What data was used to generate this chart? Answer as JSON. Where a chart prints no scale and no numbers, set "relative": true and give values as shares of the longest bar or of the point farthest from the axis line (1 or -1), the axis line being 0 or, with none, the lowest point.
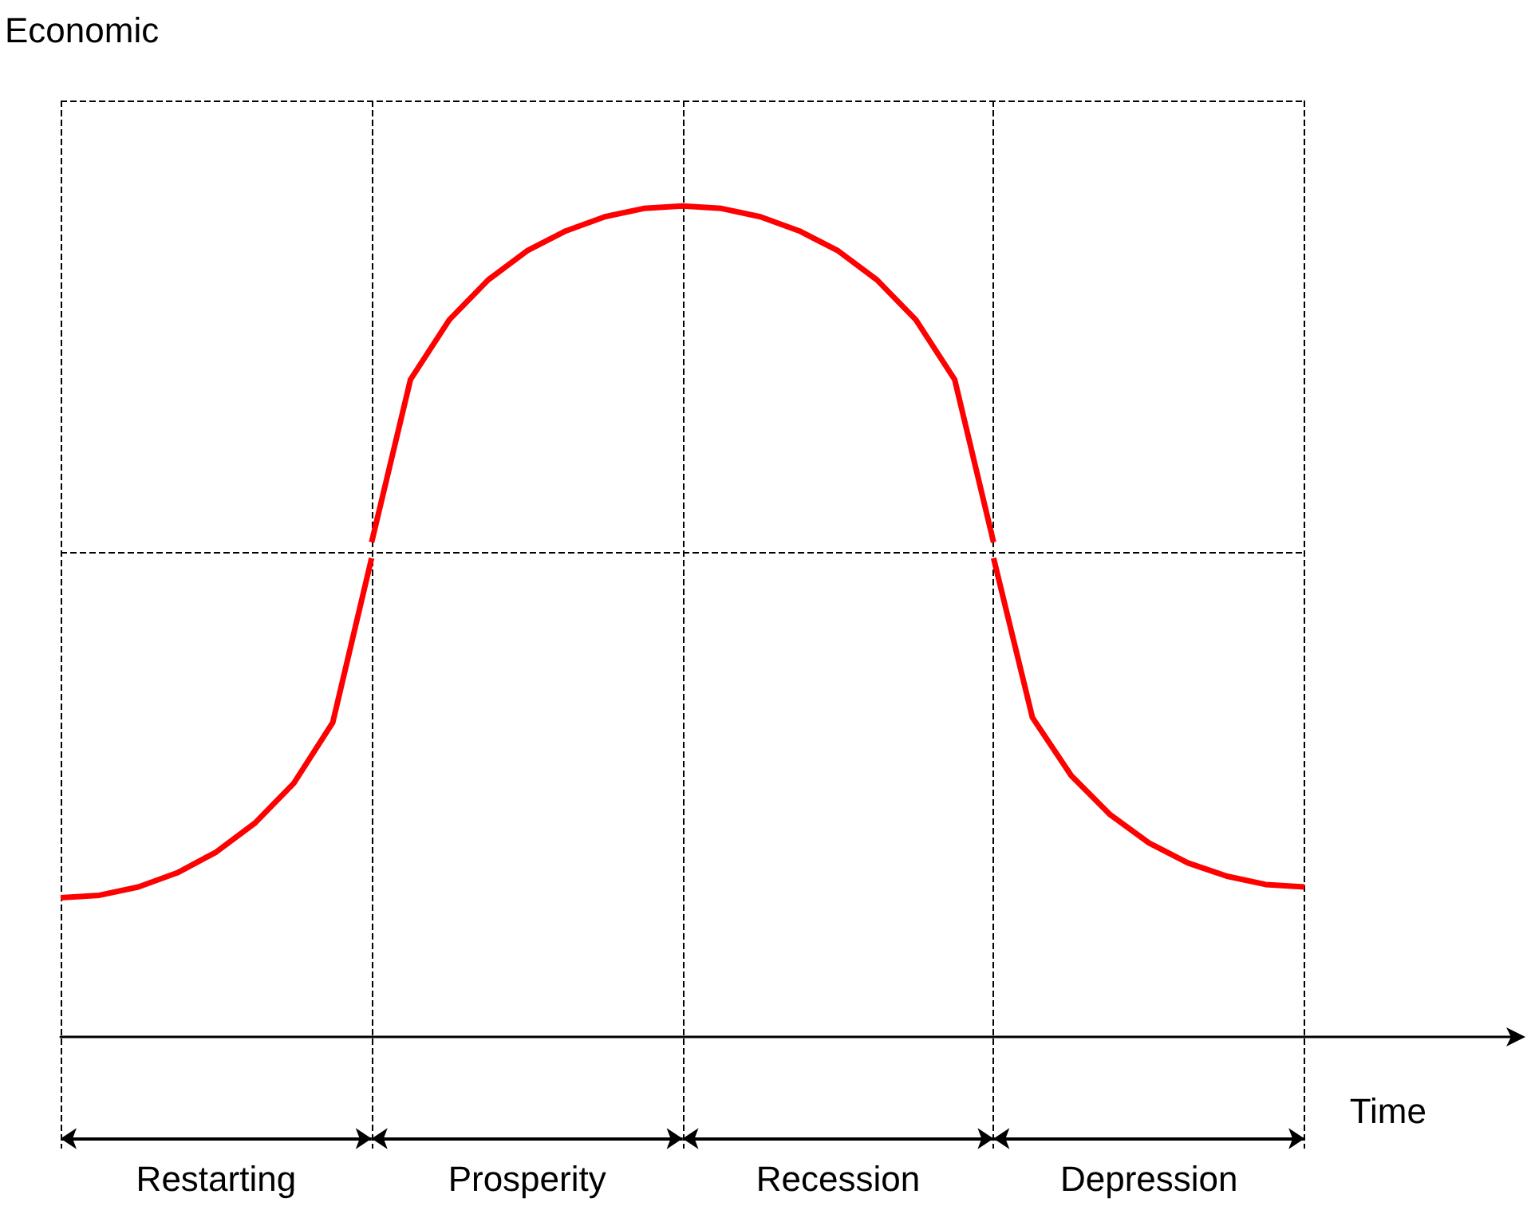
{
  "chart_data": {
    "type": "line",
    "ylabel": "Economic",
    "xlabel": "Time",
    "relative": true,
    "grid": true,
    "marker": "none",
    "line_style": "solid",
    "categories": [
      null,
      null,
      null,
      null,
      null,
      null,
      null,
      null,
      null,
      null,
      null,
      null,
      null,
      null,
      null,
      null,
      null,
      null,
      null,
      null,
      null,
      null,
      null,
      null,
      null,
      null,
      null,
      null,
      null,
      null,
      null,
      null,
      null
    ],
    "series": [
      {
        "color": "#ff0000",
        "values": [
          0.167,
          0.17,
          0.18,
          0.197,
          0.222,
          0.257,
          0.305,
          0.378,
          0.576,
          null,
          null,
          null,
          null,
          null,
          null,
          null,
          null,
          null,
          null,
          null,
          null,
          null,
          null,
          null,
          null,
          null,
          null,
          null,
          null,
          null,
          null,
          null,
          null
        ]
      },
      {
        "color": "#ff0000",
        "values": [
          null,
          null,
          null,
          null,
          null,
          null,
          null,
          null,
          0.595,
          0.791,
          0.863,
          0.911,
          0.946,
          0.97,
          0.987,
          0.997,
          1,
          0.997,
          0.987,
          0.97,
          0.946,
          0.911,
          0.863,
          0.791,
          0.595,
          null,
          null,
          null,
          null,
          null,
          null,
          null,
          null
        ]
      },
      {
        "color": "#ff0000",
        "values": [
          null,
          null,
          null,
          null,
          null,
          null,
          null,
          null,
          null,
          null,
          null,
          null,
          null,
          null,
          null,
          null,
          null,
          null,
          null,
          null,
          null,
          null,
          null,
          null,
          0.576,
          0.384,
          0.314,
          0.267,
          0.233,
          0.209,
          0.193,
          0.183,
          0.18
        ]
      }
    ],
    "annotations": [
      "Restarting",
      "Prosperity",
      "Recession",
      "Depression"
    ]
  }
}
